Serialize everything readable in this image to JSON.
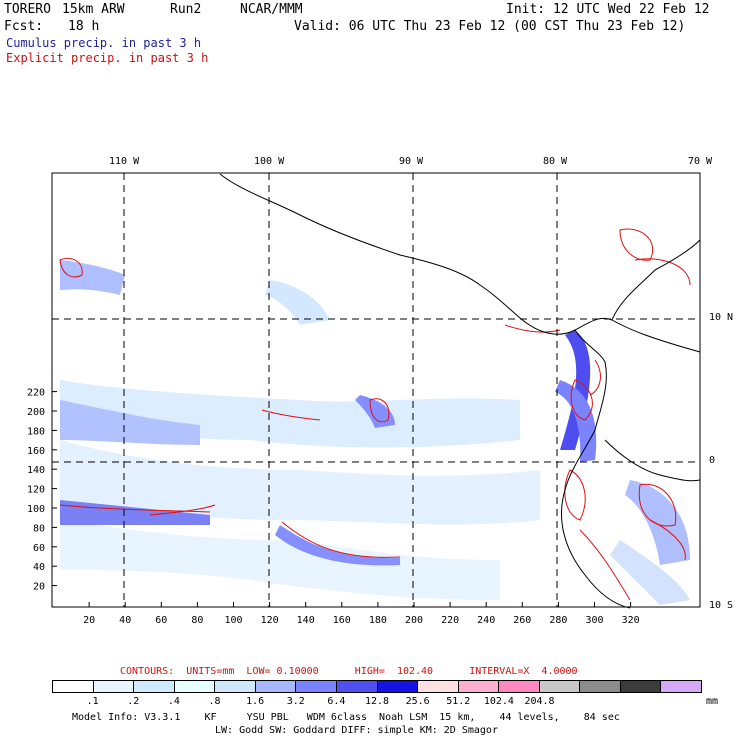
{
  "header": {
    "model": "TORERO",
    "resolution": "15km ARW",
    "run": "Run2",
    "org": "NCAR/MMM",
    "init": "Init: 12 UTC Wed 22 Feb 12",
    "fcst_label": "Fcst:",
    "fcst_value": "18 h",
    "valid": "Valid: 06 UTC Thu 23 Feb 12 (00 CST Thu 23 Feb 12)",
    "cumulus": "Cumulus precip. in past 3 h",
    "explicit": "Explicit precip. in past 3 h"
  },
  "map": {
    "lon_labels": [
      "110 W",
      "100 W",
      "90 W",
      "80 W",
      "70 W"
    ],
    "lat_labels": [
      "10 N",
      "0",
      "10 S"
    ],
    "x_ticks": [
      "20",
      "40",
      "60",
      "80",
      "100",
      "120",
      "140",
      "160",
      "180",
      "200",
      "220",
      "240",
      "260",
      "280",
      "300",
      "320"
    ],
    "y_ticks": [
      "20",
      "40",
      "60",
      "80",
      "100",
      "120",
      "140",
      "160",
      "180",
      "200",
      "220"
    ]
  },
  "contours": {
    "text": "CONTOURS:  UNITS=mm  LOW= 0.10000      HIGH=  102.40      INTERVAL=X  4.0000"
  },
  "colorbar": {
    "labels": [
      ".1",
      ".2",
      ".4",
      ".8",
      "1.6",
      "3.2",
      "6.4",
      "12.8",
      "25.6",
      "51.2",
      "102.4",
      "204.8"
    ],
    "units": "mm",
    "colors": [
      "#ffffff",
      "#e6f5ff",
      "#cdeaff",
      "#e8ffff",
      "#cfe6ff",
      "#a7b8ff",
      "#7a83ff",
      "#5050f0",
      "#1414e6",
      "#ffe0e0",
      "#ffb0d0",
      "#ff88c0",
      "#c8c8c8",
      "#8c8c8c",
      "#3c3c3c",
      "#d8a8f8"
    ]
  },
  "model_info": {
    "line1": "Model Info: V3.3.1    KF     YSU PBL   WDM 6class  Noah LSM  15 km,    44 levels,    84 sec",
    "line2": "LW: Godd SW: Goddard DIFF: simple KM: 2D Smagor"
  }
}
